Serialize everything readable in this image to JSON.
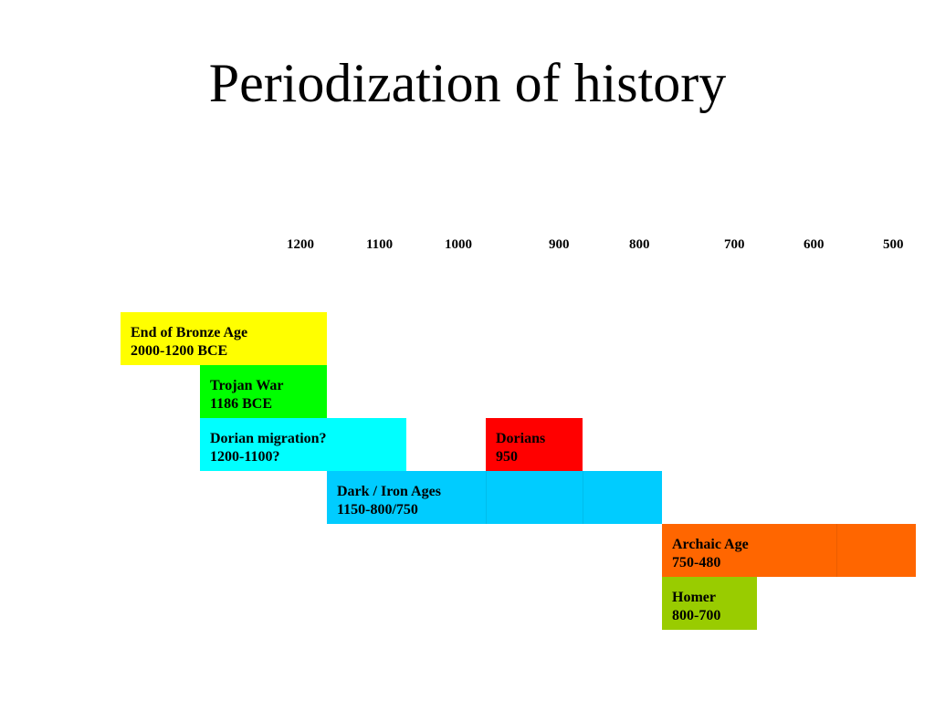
{
  "title": "Periodization of history",
  "axis": {
    "ticks": [
      "1200",
      "1100",
      "1000",
      "900",
      "800",
      "700",
      "600",
      "500"
    ]
  },
  "periods": [
    {
      "name": "End of Bronze Age",
      "range": "2000-1200 BCE",
      "color": "#FFFF00"
    },
    {
      "name": "Trojan War",
      "range": "1186 BCE",
      "color": "#00FF00"
    },
    {
      "name": "Dorian migration?",
      "range": "1200-1100?",
      "color": "#00FFFF"
    },
    {
      "name": "Dorians",
      "range": "950",
      "color": "#FF0000"
    },
    {
      "name": "Dark / Iron Ages",
      "range": "1150-800/750",
      "color": "#00CCFF"
    },
    {
      "name": "Archaic Age",
      "range": "750-480",
      "color": "#FF6600"
    },
    {
      "name": "Homer",
      "range": "800-700",
      "color": "#99CC00"
    }
  ]
}
